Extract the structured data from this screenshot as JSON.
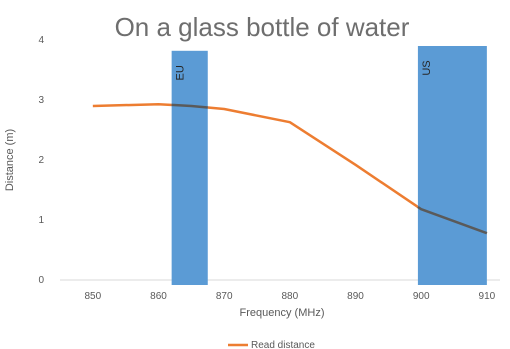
{
  "chart_data": {
    "type": "line",
    "title": "On a glass bottle of water",
    "xlabel": "Frequency (MHz)",
    "ylabel": "Distance (m)",
    "xlim": [
      845,
      912
    ],
    "ylim": [
      0,
      4
    ],
    "x_ticks": [
      "850",
      "860",
      "870",
      "880",
      "890",
      "900",
      "910"
    ],
    "y_ticks": [
      "0",
      "1",
      "2",
      "3",
      "4"
    ],
    "grid": false,
    "legend": "bottom",
    "series": [
      {
        "name": "Read distance",
        "color": "#ED7D31",
        "x": [
          850,
          860,
          865,
          870,
          880,
          890,
          900,
          910
        ],
        "y": [
          2.9,
          2.93,
          2.9,
          2.85,
          2.63,
          1.92,
          1.18,
          0.78
        ]
      }
    ],
    "bands": [
      {
        "label": "EU",
        "x_start": 862,
        "x_end": 867.5,
        "y_top": 3.82,
        "color": "#5B9BD5"
      },
      {
        "label": "US",
        "x_start": 899.5,
        "x_end": 910,
        "y_top": 3.9,
        "color": "#5B9BD5"
      }
    ],
    "overlap_line_color": "#5A5A5A"
  }
}
